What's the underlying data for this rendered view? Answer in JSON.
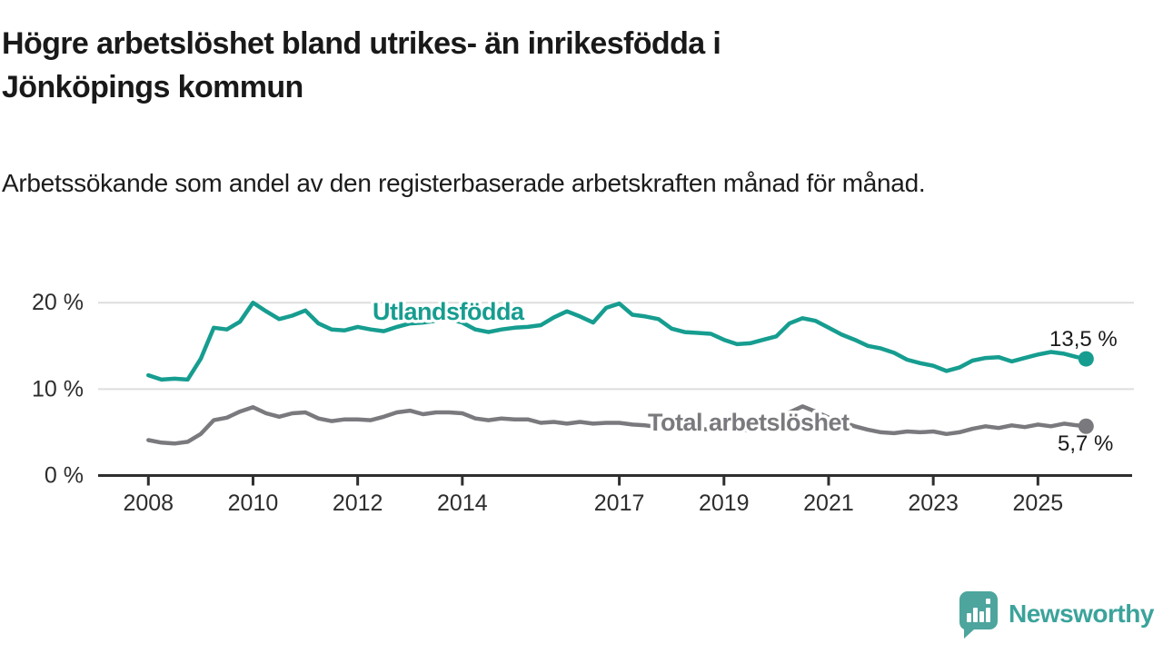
{
  "header": {
    "title_line1": "Högre arbetslöshet bland utrikes- än inrikesfödda i",
    "title_line2": "Jönköpings kommun",
    "subtitle": "Arbetssökande som andel av den registerbaserade arbetskraften månad för månad."
  },
  "footer": {
    "brand": "Newsworthy",
    "logo_icon": "speech-bubble-bar-chart",
    "brand_color": "#3ba39b",
    "icon_color": "#4da59d"
  },
  "chart_data": {
    "type": "line",
    "title": "Högre arbetslöshet bland utrikes- än inrikesfödda i Jönköpings kommun",
    "subtitle": "Arbetssökande som andel av den registerbaserade arbetskraften månad för månad.",
    "xlabel": "",
    "ylabel": "",
    "grid": "horizontal-only",
    "legend_position": "inline-labels-on-lines",
    "xlim": [
      2007.04,
      2026.8
    ],
    "ylim": [
      0,
      21.6
    ],
    "yticks": [
      {
        "value": 0,
        "label": "0 %"
      },
      {
        "value": 10,
        "label": "10 %"
      },
      {
        "value": 20,
        "label": "20 %"
      }
    ],
    "xticks": [
      {
        "value": 2008,
        "label": "2008"
      },
      {
        "value": 2010,
        "label": "2010"
      },
      {
        "value": 2012,
        "label": "2012"
      },
      {
        "value": 2014,
        "label": "2014"
      },
      {
        "value": 2017,
        "label": "2017"
      },
      {
        "value": 2019,
        "label": "2019"
      },
      {
        "value": 2021,
        "label": "2021"
      },
      {
        "value": 2023,
        "label": "2023"
      },
      {
        "value": 2025,
        "label": "2025"
      }
    ],
    "x": [
      2008,
      2008.25,
      2008.5,
      2008.75,
      2009,
      2009.25,
      2009.5,
      2009.75,
      2010,
      2010.25,
      2010.5,
      2010.75,
      2011,
      2011.25,
      2011.5,
      2011.75,
      2012,
      2012.25,
      2012.5,
      2012.75,
      2013,
      2013.25,
      2013.5,
      2013.75,
      2014,
      2014.25,
      2014.5,
      2014.75,
      2015,
      2015.25,
      2015.5,
      2015.75,
      2016,
      2016.25,
      2016.5,
      2016.75,
      2017,
      2017.25,
      2017.5,
      2017.75,
      2018,
      2018.25,
      2018.5,
      2018.75,
      2019,
      2019.25,
      2019.5,
      2019.75,
      2020,
      2020.25,
      2020.5,
      2020.75,
      2021,
      2021.25,
      2021.5,
      2021.75,
      2022,
      2022.25,
      2022.5,
      2022.75,
      2023,
      2023.25,
      2023.5,
      2023.75,
      2024,
      2024.25,
      2024.5,
      2024.75,
      2025,
      2025.25,
      2025.5,
      2025.75,
      2025.92
    ],
    "series": [
      {
        "name": "Utlandsfödda",
        "color": "#169d90",
        "end_label": "13,5 %",
        "end_value": 13.5,
        "values": [
          11.6,
          11.1,
          11.2,
          11.1,
          13.5,
          17.1,
          16.9,
          17.8,
          20.0,
          19.0,
          18.1,
          18.5,
          19.1,
          17.6,
          16.9,
          16.8,
          17.2,
          16.9,
          16.7,
          17.2,
          17.6,
          17.7,
          17.9,
          18.1,
          17.7,
          16.9,
          16.6,
          16.9,
          17.1,
          17.2,
          17.4,
          18.3,
          19.0,
          18.4,
          17.7,
          19.4,
          19.9,
          18.6,
          18.4,
          18.1,
          17.0,
          16.6,
          16.5,
          16.4,
          15.7,
          15.2,
          15.3,
          15.7,
          16.1,
          17.6,
          18.2,
          17.9,
          17.1,
          16.3,
          15.7,
          15.0,
          14.7,
          14.2,
          13.4,
          13.0,
          12.7,
          12.1,
          12.5,
          13.3,
          13.6,
          13.7,
          13.2,
          13.6,
          14.0,
          14.3,
          14.1,
          13.7,
          13.5
        ]
      },
      {
        "name": "Total arbetslöshet",
        "color": "#7a7a7e",
        "end_label": "5,7 %",
        "end_value": 5.7,
        "values": [
          4.1,
          3.8,
          3.7,
          3.9,
          4.8,
          6.4,
          6.7,
          7.4,
          7.9,
          7.2,
          6.8,
          7.2,
          7.3,
          6.6,
          6.3,
          6.5,
          6.5,
          6.4,
          6.8,
          7.3,
          7.5,
          7.1,
          7.3,
          7.3,
          7.2,
          6.6,
          6.4,
          6.6,
          6.5,
          6.5,
          6.1,
          6.2,
          6.0,
          6.2,
          6.0,
          6.1,
          6.1,
          5.9,
          5.8,
          5.6,
          5.5,
          5.4,
          5.3,
          5.4,
          5.3,
          5.2,
          5.3,
          5.5,
          6.0,
          7.3,
          8.0,
          7.4,
          6.7,
          6.2,
          5.7,
          5.3,
          5.0,
          4.9,
          5.1,
          5.0,
          5.1,
          4.8,
          5.0,
          5.4,
          5.7,
          5.5,
          5.8,
          5.6,
          5.9,
          5.7,
          6.0,
          5.8,
          5.7
        ]
      }
    ]
  }
}
